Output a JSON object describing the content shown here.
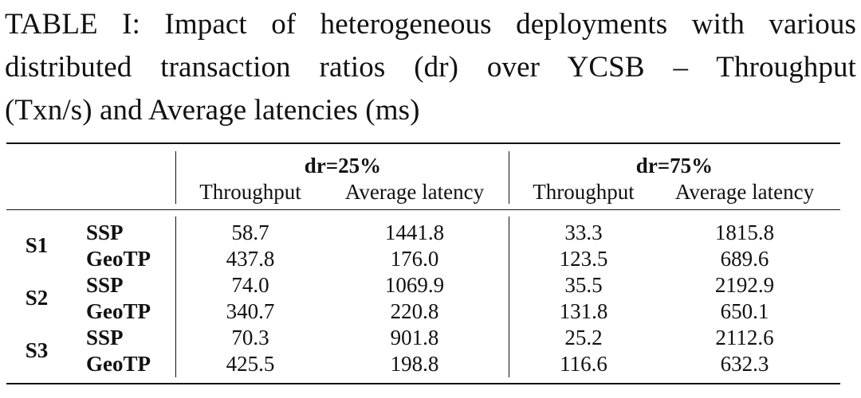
{
  "caption": {
    "line1": "TABLE I: Impact of heterogeneous deployments with various",
    "line2": "distributed transaction ratios (dr) over YCSB – Throughput",
    "line3": "(Txn/s) and Average latencies (ms)"
  },
  "table": {
    "groups": [
      {
        "label": "dr=25%",
        "columns": [
          "Throughput",
          "Average latency"
        ]
      },
      {
        "label": "dr=75%",
        "columns": [
          "Throughput",
          "Average latency"
        ]
      }
    ],
    "rows": [
      {
        "system": "S1",
        "method": "SSP",
        "values": [
          "58.7",
          "1441.8",
          "33.3",
          "1815.8"
        ]
      },
      {
        "system": "S1",
        "method": "GeoTP",
        "values": [
          "437.8",
          "176.0",
          "123.5",
          "689.6"
        ]
      },
      {
        "system": "S2",
        "method": "SSP",
        "values": [
          "74.0",
          "1069.9",
          "35.5",
          "2192.9"
        ]
      },
      {
        "system": "S2",
        "method": "GeoTP",
        "values": [
          "340.7",
          "220.8",
          "131.8",
          "650.1"
        ]
      },
      {
        "system": "S3",
        "method": "SSP",
        "values": [
          "70.3",
          "901.8",
          "25.2",
          "2112.6"
        ]
      },
      {
        "system": "S3",
        "method": "GeoTP",
        "values": [
          "425.5",
          "198.8",
          "116.6",
          "632.3"
        ]
      }
    ]
  }
}
